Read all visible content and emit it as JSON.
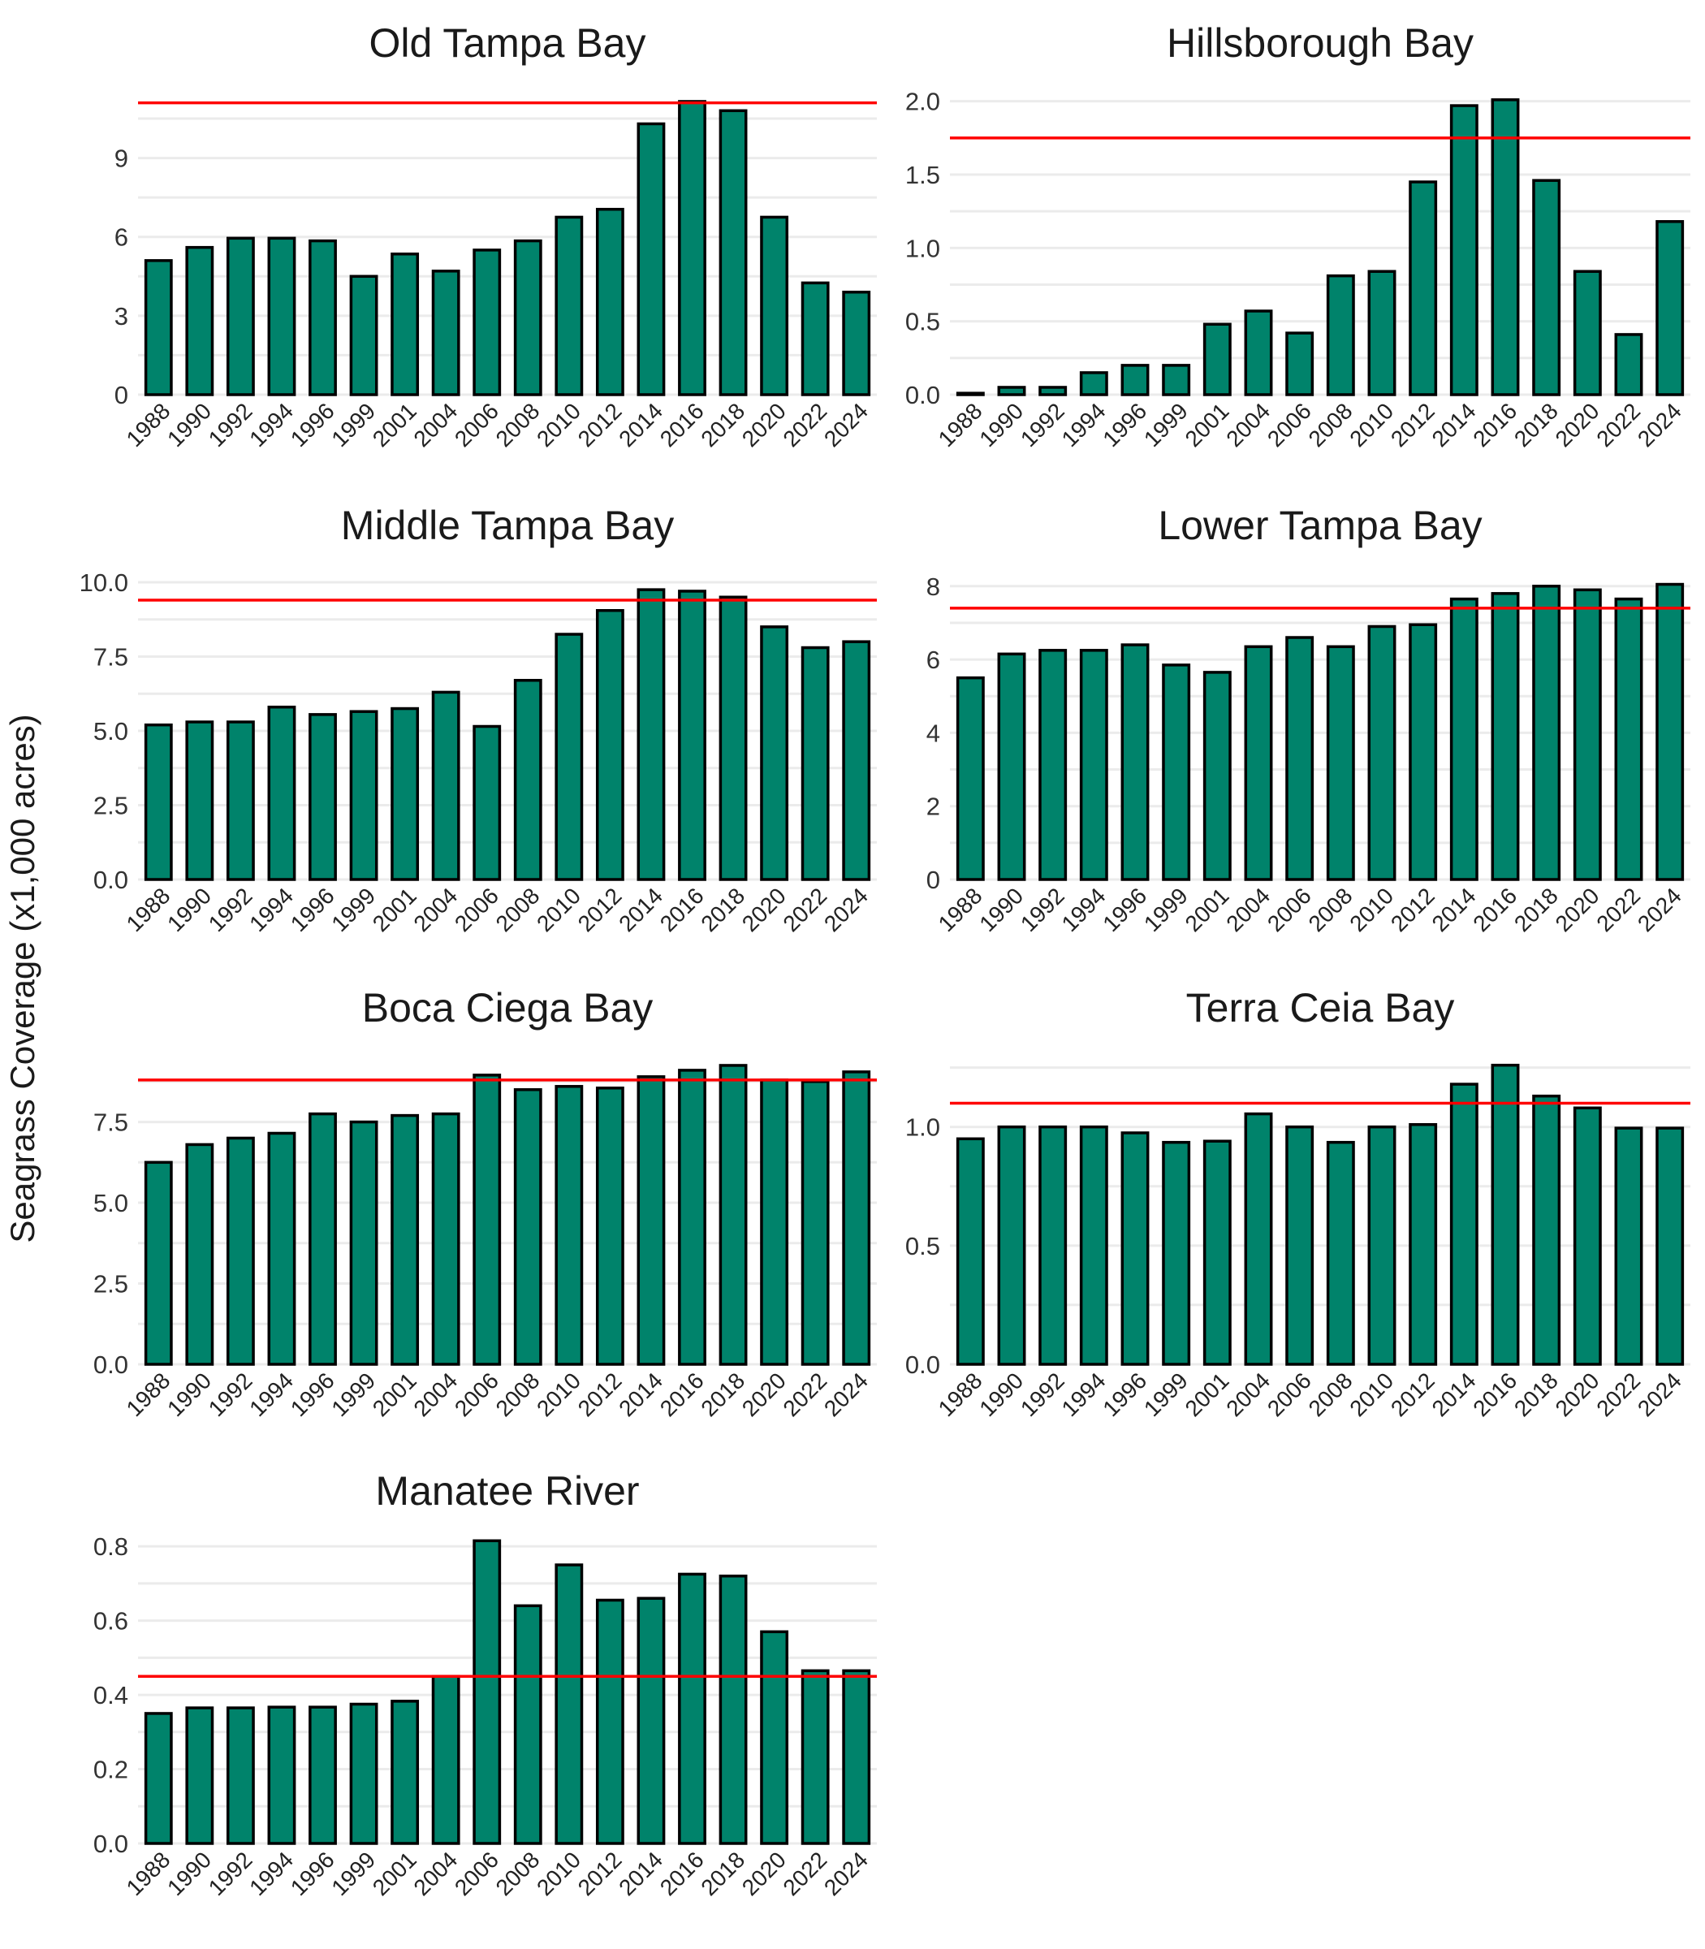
{
  "figure": {
    "ylabel": "Seagrass Coverage (x1,000 acres)"
  },
  "colors": {
    "bar_fill": "#00836B",
    "bar_stroke": "#000000",
    "target_line": "#FF0000",
    "grid": "#EBEBEB"
  },
  "chart_data": [
    {
      "type": "bar",
      "title": "Old Tampa Bay",
      "categories": [
        "1988",
        "1990",
        "1992",
        "1994",
        "1996",
        "1999",
        "2001",
        "2004",
        "2006",
        "2008",
        "2010",
        "2012",
        "2014",
        "2016",
        "2018",
        "2020",
        "2022",
        "2024"
      ],
      "values": [
        5.1,
        5.6,
        5.95,
        5.95,
        5.85,
        4.5,
        5.35,
        4.7,
        5.5,
        5.85,
        6.75,
        7.05,
        10.3,
        11.15,
        10.8,
        6.75,
        4.25,
        3.9
      ],
      "target": 11.1,
      "yticks": [
        "0",
        "3",
        "6",
        "9"
      ],
      "ylim": [
        0,
        11.55
      ]
    },
    {
      "type": "bar",
      "title": "Hillsborough Bay",
      "categories": [
        "1988",
        "1990",
        "1992",
        "1994",
        "1996",
        "1999",
        "2001",
        "2004",
        "2006",
        "2008",
        "2010",
        "2012",
        "2014",
        "2016",
        "2018",
        "2020",
        "2022",
        "2024"
      ],
      "values": [
        0.01,
        0.05,
        0.05,
        0.15,
        0.2,
        0.2,
        0.48,
        0.57,
        0.42,
        0.81,
        0.84,
        1.45,
        1.97,
        2.01,
        1.46,
        0.84,
        0.41,
        1.18
      ],
      "target": 1.75,
      "yticks": [
        "0.0",
        "0.5",
        "1.0",
        "1.5",
        "2.0"
      ],
      "ylim": [
        0,
        2.07
      ]
    },
    {
      "type": "bar",
      "title": "Middle Tampa Bay",
      "categories": [
        "1988",
        "1990",
        "1992",
        "1994",
        "1996",
        "1999",
        "2001",
        "2004",
        "2006",
        "2008",
        "2010",
        "2012",
        "2014",
        "2016",
        "2018",
        "2020",
        "2022",
        "2024"
      ],
      "values": [
        5.2,
        5.3,
        5.3,
        5.8,
        5.55,
        5.65,
        5.75,
        6.3,
        5.15,
        6.7,
        8.25,
        9.05,
        9.75,
        9.7,
        9.5,
        8.5,
        7.8,
        8.0
      ],
      "target": 9.4,
      "yticks": [
        "0.0",
        "2.5",
        "5.0",
        "7.5",
        "10.0"
      ],
      "ylim": [
        0,
        10.3
      ]
    },
    {
      "type": "bar",
      "title": "Lower Tampa Bay",
      "categories": [
        "1988",
        "1990",
        "1992",
        "1994",
        "1996",
        "1999",
        "2001",
        "2004",
        "2006",
        "2008",
        "2010",
        "2012",
        "2014",
        "2016",
        "2018",
        "2020",
        "2022",
        "2024"
      ],
      "values": [
        5.5,
        6.15,
        6.25,
        6.25,
        6.4,
        5.85,
        5.65,
        6.35,
        6.6,
        6.35,
        6.9,
        6.95,
        7.65,
        7.8,
        8.0,
        7.9,
        7.65,
        8.05
      ],
      "target": 7.4,
      "yticks": [
        "0",
        "2",
        "4",
        "6",
        "8"
      ],
      "ylim": [
        0,
        8.35
      ]
    },
    {
      "type": "bar",
      "title": "Boca Ciega Bay",
      "categories": [
        "1988",
        "1990",
        "1992",
        "1994",
        "1996",
        "1999",
        "2001",
        "2004",
        "2006",
        "2008",
        "2010",
        "2012",
        "2014",
        "2016",
        "2018",
        "2020",
        "2022",
        "2024"
      ],
      "values": [
        6.25,
        6.8,
        7.0,
        7.15,
        7.75,
        7.5,
        7.7,
        7.75,
        8.95,
        8.5,
        8.6,
        8.55,
        8.9,
        9.1,
        9.25,
        8.8,
        8.75,
        9.05
      ],
      "target": 8.8,
      "yticks": [
        "0.0",
        "2.5",
        "5.0",
        "7.5"
      ],
      "ylim": [
        0,
        9.55
      ]
    },
    {
      "type": "bar",
      "title": "Terra Ceia Bay",
      "categories": [
        "1988",
        "1990",
        "1992",
        "1994",
        "1996",
        "1999",
        "2001",
        "2004",
        "2006",
        "2008",
        "2010",
        "2012",
        "2014",
        "2016",
        "2018",
        "2020",
        "2022",
        "2024"
      ],
      "values": [
        0.95,
        1.0,
        1.0,
        1.0,
        0.975,
        0.935,
        0.94,
        1.055,
        1.0,
        0.935,
        1.0,
        1.01,
        1.18,
        1.26,
        1.13,
        1.08,
        0.995,
        0.995
      ],
      "target": 1.1,
      "yticks": [
        "0.0",
        "0.5",
        "1.0"
      ],
      "ylim": [
        0,
        1.3
      ]
    },
    {
      "type": "bar",
      "title": "Manatee River",
      "categories": [
        "1988",
        "1990",
        "1992",
        "1994",
        "1996",
        "1999",
        "2001",
        "2004",
        "2006",
        "2008",
        "2010",
        "2012",
        "2014",
        "2016",
        "2018",
        "2020",
        "2022",
        "2024"
      ],
      "values": [
        0.35,
        0.365,
        0.365,
        0.367,
        0.367,
        0.375,
        0.383,
        0.45,
        0.815,
        0.64,
        0.75,
        0.655,
        0.66,
        0.725,
        0.72,
        0.57,
        0.465,
        0.465
      ],
      "target": 0.45,
      "yticks": [
        "0.0",
        "0.2",
        "0.4",
        "0.6",
        "0.8"
      ],
      "ylim": [
        0,
        0.82
      ]
    }
  ]
}
